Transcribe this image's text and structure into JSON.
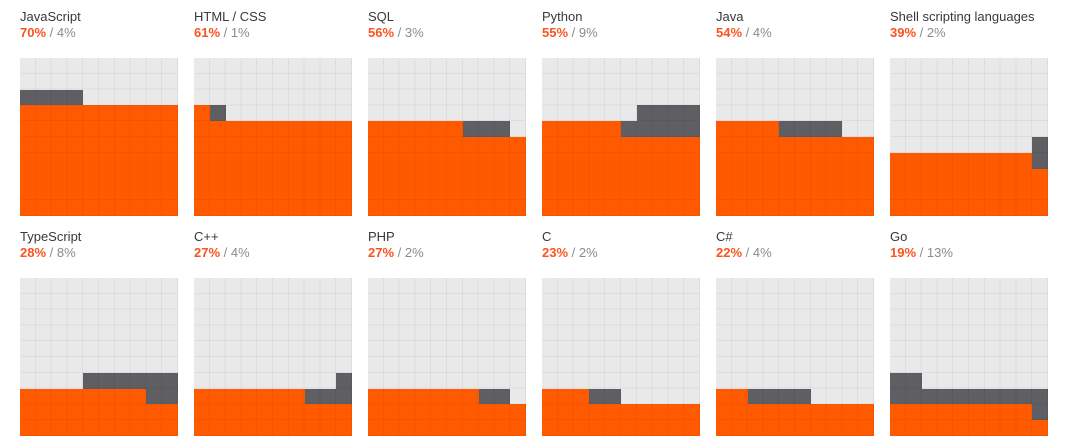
{
  "chart_data": {
    "type": "waffle",
    "title": "Programming language usage waffle charts",
    "grid": {
      "rows": 10,
      "cols": 10,
      "cell_value_percent": 1
    },
    "fill_rule": "primary fills rows bottom-up, left-to-right; secondary continues from primary's end, alternating direction on each subsequent row (serpentine)",
    "legend_position": "above each chart",
    "colors": {
      "primary": "#ff5a00",
      "secondary": "#5e5e63",
      "empty": "#e9e9ea",
      "gridline": "rgba(0,0,0,0.05)",
      "title_text": "#38383d",
      "primary_text": "#f9541f",
      "secondary_text": "#8a8a90"
    },
    "series": [
      {
        "title": "JavaScript",
        "primary": 70,
        "secondary": 4,
        "primary_label": "70%",
        "secondary_label": "/ 4%"
      },
      {
        "title": "HTML / CSS",
        "primary": 61,
        "secondary": 1,
        "primary_label": "61%",
        "secondary_label": "/ 1%"
      },
      {
        "title": "SQL",
        "primary": 56,
        "secondary": 3,
        "primary_label": "56%",
        "secondary_label": "/ 3%"
      },
      {
        "title": "Python",
        "primary": 55,
        "secondary": 9,
        "primary_label": "55%",
        "secondary_label": "/ 9%"
      },
      {
        "title": "Java",
        "primary": 54,
        "secondary": 4,
        "primary_label": "54%",
        "secondary_label": "/ 4%"
      },
      {
        "title": "Shell scripting languages",
        "primary": 39,
        "secondary": 2,
        "primary_label": "39%",
        "secondary_label": "/ 2%"
      },
      {
        "title": "TypeScript",
        "primary": 28,
        "secondary": 8,
        "primary_label": "28%",
        "secondary_label": "/ 8%"
      },
      {
        "title": "C++",
        "primary": 27,
        "secondary": 4,
        "primary_label": "27%",
        "secondary_label": "/ 4%"
      },
      {
        "title": "PHP",
        "primary": 27,
        "secondary": 2,
        "primary_label": "27%",
        "secondary_label": "/ 2%"
      },
      {
        "title": "C",
        "primary": 23,
        "secondary": 2,
        "primary_label": "23%",
        "secondary_label": "/ 2%"
      },
      {
        "title": "C#",
        "primary": 22,
        "secondary": 4,
        "primary_label": "22%",
        "secondary_label": "/ 4%"
      },
      {
        "title": "Go",
        "primary": 19,
        "secondary": 13,
        "primary_label": "19%",
        "secondary_label": "/ 13%"
      }
    ]
  }
}
